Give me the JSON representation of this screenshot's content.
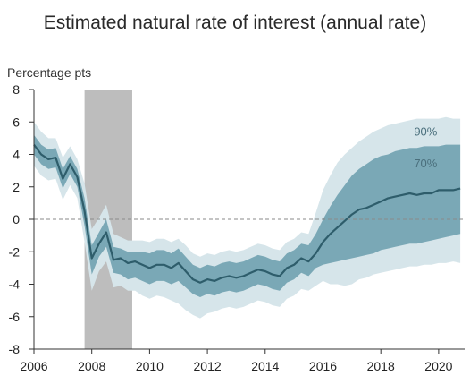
{
  "page_title": "Estimated natural rate of interest (annual rate)",
  "chart_data": {
    "type": "line",
    "title": "Estimated natural rate of interest (annual rate)",
    "ylabel": "Percentage pts",
    "xlabel": "",
    "xlim": [
      2006,
      2020.9
    ],
    "ylim": [
      -8,
      8
    ],
    "x_ticks": [
      "2006",
      "2008",
      "2010",
      "2012",
      "2014",
      "2016",
      "2018",
      "2020"
    ],
    "y_ticks": [
      "8",
      "6",
      "4",
      "2",
      "0",
      "-2",
      "-4",
      "-6",
      "-8"
    ],
    "grid": false,
    "zero_line": "dashed",
    "recession_shading": {
      "start": 2007.75,
      "end": 2009.4,
      "color": "#bdbdbd"
    },
    "colors": {
      "line": "#2e5d6b",
      "band_70": "#7aa8b6",
      "band_90": "#d6e5ea",
      "zero": "#8a8a8a"
    },
    "series": [
      {
        "name": "median",
        "x": [
          2006,
          2006.25,
          2006.5,
          2006.75,
          2007,
          2007.25,
          2007.5,
          2007.75,
          2008,
          2008.25,
          2008.5,
          2008.75,
          2009,
          2009.25,
          2009.5,
          2009.75,
          2010,
          2010.25,
          2010.5,
          2010.75,
          2011,
          2011.25,
          2011.5,
          2011.75,
          2012,
          2012.25,
          2012.5,
          2012.75,
          2013,
          2013.25,
          2013.5,
          2013.75,
          2014,
          2014.25,
          2014.5,
          2014.75,
          2015,
          2015.25,
          2015.5,
          2015.75,
          2016,
          2016.25,
          2016.5,
          2016.75,
          2017,
          2017.25,
          2017.5,
          2017.75,
          2018,
          2018.25,
          2018.5,
          2018.75,
          2019,
          2019.25,
          2019.5,
          2019.75,
          2020,
          2020.25,
          2020.5,
          2020.75
        ],
        "values": [
          4.6,
          4.0,
          3.7,
          3.8,
          2.5,
          3.4,
          2.6,
          0.5,
          -2.4,
          -1.5,
          -0.8,
          -2.5,
          -2.4,
          -2.7,
          -2.6,
          -2.8,
          -3.0,
          -2.8,
          -2.8,
          -3.0,
          -2.7,
          -3.2,
          -3.7,
          -3.9,
          -3.7,
          -3.8,
          -3.6,
          -3.5,
          -3.6,
          -3.5,
          -3.3,
          -3.1,
          -3.2,
          -3.4,
          -3.5,
          -3.0,
          -2.8,
          -2.4,
          -2.6,
          -2.1,
          -1.4,
          -0.9,
          -0.5,
          -0.1,
          0.3,
          0.6,
          0.7,
          0.9,
          1.1,
          1.3,
          1.4,
          1.5,
          1.6,
          1.5,
          1.6,
          1.6,
          1.8,
          1.8,
          1.8,
          1.9
        ]
      },
      {
        "name": "70%",
        "upper": [
          5.2,
          4.6,
          4.3,
          4.4,
          3.1,
          3.9,
          3.1,
          1.3,
          -1.6,
          -0.8,
          0.0,
          -1.7,
          -1.8,
          -2.0,
          -2.0,
          -2.0,
          -2.1,
          -1.9,
          -1.9,
          -2.1,
          -1.8,
          -2.3,
          -2.8,
          -3.0,
          -2.8,
          -2.9,
          -2.7,
          -2.6,
          -2.7,
          -2.6,
          -2.4,
          -2.2,
          -2.3,
          -2.5,
          -2.6,
          -2.1,
          -1.9,
          -1.5,
          -1.6,
          -0.9,
          0.0,
          0.8,
          1.5,
          2.1,
          2.7,
          3.1,
          3.4,
          3.7,
          3.9,
          4.0,
          4.2,
          4.3,
          4.4,
          4.4,
          4.5,
          4.5,
          4.5,
          4.6,
          4.6,
          4.6
        ],
        "lower": [
          4.0,
          3.4,
          3.1,
          3.2,
          1.9,
          2.8,
          2.0,
          -0.4,
          -3.4,
          -2.3,
          -1.7,
          -3.3,
          -3.4,
          -3.7,
          -3.6,
          -3.8,
          -4.0,
          -3.8,
          -3.8,
          -4.0,
          -3.8,
          -4.2,
          -4.6,
          -4.8,
          -4.6,
          -4.7,
          -4.5,
          -4.4,
          -4.5,
          -4.4,
          -4.2,
          -4.0,
          -4.1,
          -4.3,
          -4.4,
          -3.9,
          -3.7,
          -3.3,
          -3.5,
          -3.0,
          -2.8,
          -2.7,
          -2.6,
          -2.5,
          -2.4,
          -2.3,
          -2.2,
          -2.1,
          -1.9,
          -1.8,
          -1.7,
          -1.6,
          -1.5,
          -1.5,
          -1.4,
          -1.3,
          -1.2,
          -1.1,
          -1.0,
          -0.9
        ]
      },
      {
        "name": "90%",
        "upper": [
          6.0,
          5.4,
          5.0,
          5.0,
          3.8,
          4.5,
          3.7,
          2.2,
          -0.6,
          0.1,
          0.9,
          -0.9,
          -1.1,
          -1.3,
          -1.3,
          -1.3,
          -1.4,
          -1.2,
          -1.2,
          -1.4,
          -1.2,
          -1.6,
          -2.1,
          -2.3,
          -2.1,
          -2.2,
          -2.0,
          -1.9,
          -2.0,
          -1.9,
          -1.7,
          -1.5,
          -1.6,
          -1.8,
          -1.9,
          -1.4,
          -1.2,
          -0.8,
          -0.9,
          0.4,
          1.8,
          2.7,
          3.5,
          4.0,
          4.4,
          4.8,
          5.1,
          5.4,
          5.6,
          5.8,
          5.9,
          6.0,
          6.1,
          6.2,
          6.2,
          6.2,
          6.2,
          6.3,
          6.2,
          6.2
        ],
        "lower": [
          3.3,
          2.7,
          2.4,
          2.5,
          1.2,
          2.1,
          1.3,
          -1.4,
          -4.4,
          -3.2,
          -2.6,
          -4.2,
          -4.1,
          -4.4,
          -4.4,
          -4.7,
          -4.9,
          -4.7,
          -4.8,
          -5.0,
          -5.2,
          -5.6,
          -5.9,
          -6.1,
          -5.8,
          -5.7,
          -5.5,
          -5.4,
          -5.5,
          -5.4,
          -5.2,
          -5.0,
          -5.1,
          -5.3,
          -5.4,
          -4.9,
          -4.7,
          -4.3,
          -4.4,
          -4.1,
          -3.8,
          -4.0,
          -4.0,
          -4.1,
          -4.0,
          -3.7,
          -3.6,
          -3.4,
          -3.3,
          -3.2,
          -3.1,
          -3.0,
          -2.9,
          -2.9,
          -2.8,
          -2.8,
          -2.7,
          -2.7,
          -2.6,
          -2.7
        ]
      }
    ],
    "annotations": [
      "90%",
      "70%"
    ]
  }
}
